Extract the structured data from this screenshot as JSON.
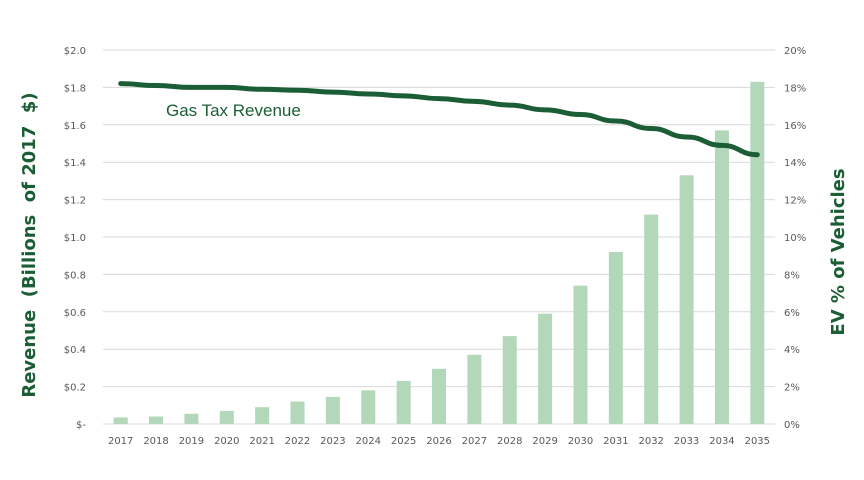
{
  "chart_data": {
    "type": "bar+line",
    "categories": [
      "2017",
      "2018",
      "2019",
      "2020",
      "2021",
      "2022",
      "2023",
      "2024",
      "2025",
      "2026",
      "2027",
      "2028",
      "2029",
      "2030",
      "2031",
      "2032",
      "2033",
      "2034",
      "2035"
    ],
    "series": [
      {
        "name": "Gas Tax Revenue",
        "type": "line",
        "axis": "left",
        "values": [
          1.82,
          1.81,
          1.8,
          1.8,
          1.79,
          1.785,
          1.775,
          1.765,
          1.755,
          1.74,
          1.725,
          1.705,
          1.68,
          1.655,
          1.62,
          1.58,
          1.535,
          1.49,
          1.44
        ]
      },
      {
        "type": "bar",
        "axis": "right",
        "values": [
          0.35,
          0.4,
          0.55,
          0.7,
          0.9,
          1.2,
          1.45,
          1.8,
          2.3,
          2.95,
          3.7,
          4.7,
          5.9,
          7.4,
          9.2,
          11.2,
          13.3,
          15.7,
          18.3
        ]
      }
    ],
    "ylabel": "Revenue  (Billions  of 2017  $)",
    "y2label": "EV % of Vehicles",
    "ylim": [
      0,
      2.0
    ],
    "y2lim": [
      0,
      20
    ],
    "y_ticks": [
      "$-",
      "$0.2",
      "$0.4",
      "$0.6",
      "$0.8",
      "$1.0",
      "$1.2",
      "$1.4",
      "$1.6",
      "$1.8",
      "$2.0"
    ],
    "y2_ticks": [
      "0%",
      "2%",
      "4%",
      "6%",
      "8%",
      "10%",
      "12%",
      "14%",
      "16%",
      "18%",
      "20%"
    ],
    "annotation": "Gas Tax Revenue",
    "grid": true,
    "colors": {
      "line": "#1b5e35",
      "bar": "#b2d8b9",
      "text": "#1b5e35",
      "tick": "#595959",
      "grid": "#d9d9d9"
    }
  }
}
